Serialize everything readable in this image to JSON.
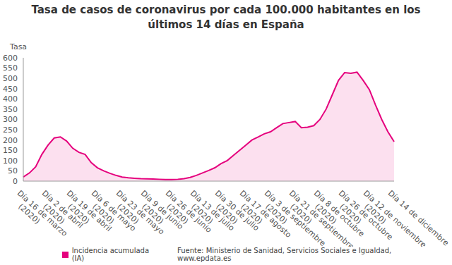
{
  "chart_data": {
    "type": "area",
    "title": "Tasa de casos de coronavirus por cada 100.000 habitantes en los últimos 14 días en España",
    "y_label": "Tasa",
    "source": "Fuente: Ministerio de Sanidad, Servicios Sociales e Igualdad, www.epdata.es",
    "categories": [
      "Día 16 de marzo (2020)",
      null,
      null,
      null,
      "Día 2 de abril (2020)",
      null,
      null,
      null,
      "Día 19 de abril (2020)",
      null,
      null,
      null,
      "Día 6 de mayo (2020)",
      null,
      null,
      null,
      "Día 23 de mayo (2020)",
      null,
      null,
      null,
      "Día 9 de junio (2020)",
      null,
      null,
      null,
      "Día 26 de junio (2020)",
      null,
      null,
      null,
      "Día 13 de julio (2020)",
      null,
      null,
      null,
      "Día 30 de julio (2020)",
      null,
      null,
      null,
      "Día 17 de agosto (2020)",
      null,
      null,
      null,
      "Día 3 de septiembre (2020)",
      null,
      null,
      null,
      "Día 21 de septiembre (2020)",
      null,
      null,
      null,
      "Día 8 de octubre (2020)",
      null,
      null,
      null,
      "Día 26 de octubre (2020)",
      null,
      null,
      null,
      "Día 12 de noviembre (2020)",
      null,
      null,
      null,
      "Día 14 de diciembre"
    ],
    "series": [
      {
        "name": "Incidencia acumulada (IA)",
        "color": "#e5007d",
        "values": [
          20,
          40,
          70,
          130,
          175,
          210,
          215,
          195,
          160,
          140,
          130,
          90,
          65,
          50,
          38,
          28,
          20,
          16,
          14,
          12,
          11,
          10,
          9,
          8,
          8,
          9,
          12,
          18,
          28,
          40,
          52,
          65,
          85,
          100,
          125,
          150,
          175,
          200,
          215,
          230,
          240,
          260,
          280,
          285,
          290,
          260,
          262,
          270,
          300,
          350,
          420,
          490,
          528,
          525,
          530,
          490,
          445,
          370,
          300,
          240,
          192
        ]
      }
    ],
    "ylim": [
      0,
      600
    ],
    "yticks": [
      0,
      50,
      100,
      150,
      200,
      250,
      300,
      350,
      400,
      450,
      500,
      550,
      600
    ],
    "grid": false,
    "legend": "bottom"
  }
}
